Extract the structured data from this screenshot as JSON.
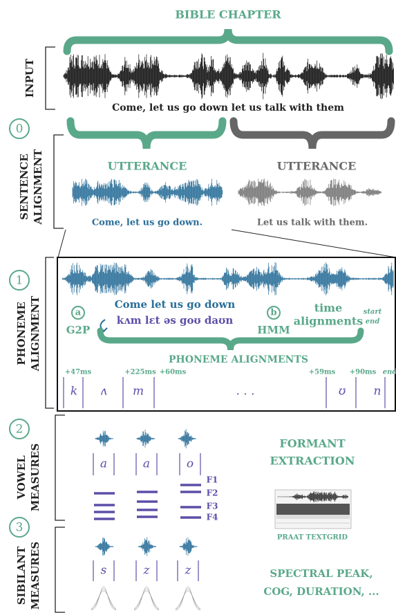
{
  "input": {
    "title": "BIBLE CHAPTER",
    "label": "INPUT",
    "transcript": "Come, let us go down let us talk with them"
  },
  "sentence_alignment": {
    "step": "0",
    "label": [
      "SENTENCE",
      "ALIGNMENT"
    ],
    "utterances": [
      {
        "label": "UTTERANCE",
        "text": "Come, let us go down."
      },
      {
        "label": "UTTERANCE",
        "text": "Let us talk with them."
      }
    ]
  },
  "phoneme_alignment": {
    "step": "1",
    "label": [
      "PHONEME",
      "ALIGNMENT"
    ],
    "g2p": {
      "marker": "a",
      "label": "G2P"
    },
    "sentence": "Come let us go down",
    "ipa": "kʌm lɛt əs goʊ daʊn",
    "hmm": {
      "marker": "b",
      "label": "HMM"
    },
    "time_alignments": [
      "time",
      "alignments"
    ],
    "start": "start",
    "end": "end",
    "result": "PHONEME ALIGNMENTS",
    "timings": [
      "+47ms",
      "+225ms",
      "+60ms",
      "+59ms",
      "+90ms",
      "end"
    ],
    "phonemes": [
      "k",
      "ʌ",
      "m",
      ". . .",
      "ʊ",
      "n"
    ]
  },
  "vowel_measures": {
    "step": "2",
    "label": [
      "VOWEL",
      "MEASURES"
    ],
    "vowels": [
      "a",
      "a",
      "o"
    ],
    "formants": [
      "F1",
      "F2",
      "F3",
      "F4"
    ],
    "method": [
      "FORMANT",
      "EXTRACTION"
    ],
    "tool": "PRAAT TEXTGRID"
  },
  "sibilant_measures": {
    "step": "3",
    "label": [
      "SIBILANT",
      "MEASURES"
    ],
    "sibilants": [
      "s",
      "z",
      "z"
    ],
    "measures": [
      "SPECTRAL PEAK,",
      "COG, DURATION, ..."
    ]
  }
}
